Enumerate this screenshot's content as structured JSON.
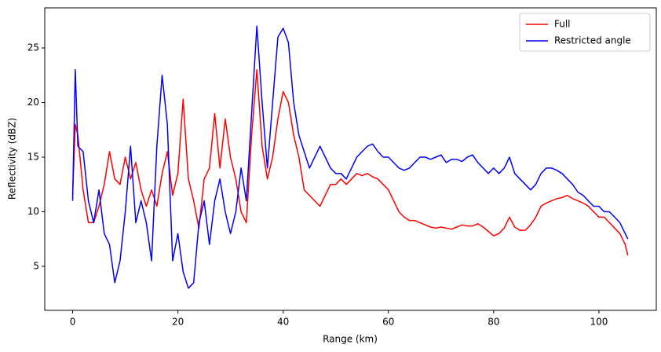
{
  "chart_data": {
    "type": "line",
    "xlabel": "Range (km)",
    "ylabel": "Reflectivity (dBZ)",
    "x": [
      0,
      0.5,
      1,
      2,
      3,
      4,
      5,
      6,
      7,
      8,
      9,
      10,
      11,
      12,
      13,
      14,
      15,
      16,
      17,
      18,
      19,
      20,
      21,
      22,
      23,
      24,
      25,
      26,
      27,
      28,
      29,
      30,
      31,
      32,
      33,
      34,
      35,
      36,
      37,
      38,
      39,
      40,
      41,
      42,
      43,
      44,
      45,
      46,
      47,
      48,
      49,
      50,
      51,
      52,
      53,
      54,
      55,
      56,
      57,
      58,
      59,
      60,
      61,
      62,
      63,
      64,
      65,
      66,
      67,
      68,
      69,
      70,
      71,
      72,
      73,
      74,
      75,
      76,
      77,
      78,
      79,
      80,
      81,
      82,
      83,
      84,
      85,
      86,
      87,
      88,
      89,
      90,
      91,
      92,
      93,
      94,
      95,
      96,
      97,
      98,
      99,
      100,
      101,
      102,
      103,
      104,
      105,
      105.5
    ],
    "series": [
      {
        "name": "Full",
        "color": "#ff0000",
        "values": [
          11.5,
          18,
          17,
          12,
          9,
          9,
          10.5,
          12.5,
          15.5,
          13,
          12.5,
          15,
          13,
          14.5,
          12,
          10.5,
          12,
          10.5,
          13.5,
          15.5,
          11.5,
          13.5,
          20.3,
          13,
          11,
          8.5,
          13,
          14,
          19,
          14,
          18.5,
          15,
          13,
          10,
          9,
          17,
          23,
          16,
          13,
          15,
          18.5,
          21,
          20,
          17,
          15,
          12,
          11.5,
          11,
          10.5,
          11.5,
          12.5,
          12.5,
          13,
          12.5,
          13,
          13.5,
          13.3,
          13.5,
          13.2,
          13,
          12.5,
          12,
          11,
          10,
          9.5,
          9.2,
          9.2,
          9,
          8.8,
          8.6,
          8.5,
          8.6,
          8.5,
          8.4,
          8.6,
          8.8,
          8.7,
          8.7,
          8.9,
          8.6,
          8.2,
          7.8,
          8,
          8.5,
          9.5,
          8.6,
          8.3,
          8.3,
          8.8,
          9.5,
          10.5,
          10.8,
          11,
          11.2,
          11.3,
          11.5,
          11.2,
          11,
          10.8,
          10.5,
          10,
          9.5,
          9.5,
          9,
          8.5,
          8,
          7,
          6
        ]
      },
      {
        "name": "Restricted angle",
        "color": "#0000ff",
        "values": [
          11,
          23,
          16,
          15.5,
          11,
          9,
          12,
          8,
          7,
          3.5,
          5.5,
          10,
          16,
          9,
          11,
          9,
          5.5,
          16,
          22.5,
          18,
          5.5,
          8,
          4.5,
          3,
          3.5,
          9,
          11,
          7,
          11,
          13,
          10,
          8,
          10,
          14,
          11,
          19,
          27,
          20,
          14,
          20,
          26,
          26.8,
          25.5,
          20,
          17,
          15.5,
          14,
          15,
          16,
          15,
          14,
          13.5,
          13.5,
          13,
          14,
          15,
          15.5,
          16,
          16.2,
          15.5,
          15,
          15,
          14.5,
          14,
          13.8,
          14,
          14.5,
          15,
          15,
          14.8,
          15,
          15.2,
          14.5,
          14.8,
          14.8,
          14.6,
          15,
          15.2,
          14.5,
          14,
          13.5,
          14,
          13.5,
          14,
          15,
          13.5,
          13,
          12.5,
          12,
          12.5,
          13.5,
          14,
          14,
          13.8,
          13.5,
          13,
          12.5,
          11.8,
          11.5,
          11,
          10.5,
          10.5,
          10,
          10,
          9.5,
          9,
          8,
          7.5
        ]
      }
    ],
    "xlim": [
      -5.3,
      110.9
    ],
    "ylim": [
      0.97,
      28.67
    ],
    "xticks": [
      0,
      20,
      40,
      60,
      80,
      100
    ],
    "yticks": [
      5,
      10,
      15,
      20,
      25
    ],
    "legend": "upper right"
  }
}
